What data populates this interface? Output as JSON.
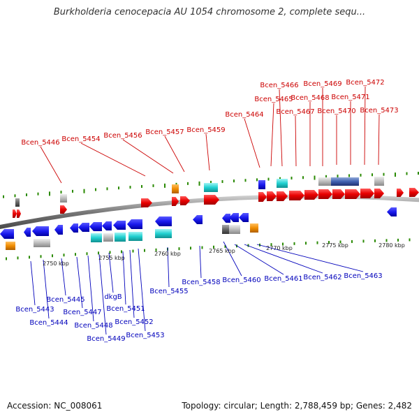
{
  "title": "Burkholderia cenocepacia AU 1054 chromosome 2, complete sequ...",
  "footer": {
    "accession": "Accession: NC_008061",
    "summary": "Topology: circular; Length: 2,788,459 bp; Genes: 2,482"
  },
  "colors": {
    "forward_gene": "#e80000",
    "reverse_gene": "#1a1aee",
    "rna": "#20d0d0",
    "pseudo": "#f08c00",
    "misc": "#bbbbbb",
    "gap": "#666666",
    "backbone": "#888888",
    "tick": "#2a8a00",
    "forward_label": "#cc0000",
    "reverse_label": "#0000bb"
  },
  "scale": {
    "unit": "kbp",
    "ticks": [
      {
        "label": "2750 kbp"
      },
      {
        "label": "2755 kbp"
      },
      {
        "label": "2760 kbp"
      },
      {
        "label": "2765 kbp"
      },
      {
        "label": "2770 kbp"
      },
      {
        "label": "2775 kbp"
      },
      {
        "label": "2780 kbp"
      }
    ]
  },
  "forward_labels": [
    "Bcen_5446",
    "Bcen_5454",
    "Bcen_5456",
    "Bcen_5457",
    "Bcen_5459",
    "Bcen_5464",
    "Bcen_5465",
    "Bcen_5466",
    "Bcen_5467",
    "Bcen_5468",
    "Bcen_5469",
    "Bcen_5470",
    "Bcen_5471",
    "Bcen_5472",
    "Bcen_5473"
  ],
  "reverse_labels": [
    "Bcen_5443",
    "Bcen_5444",
    "Bcen_5445",
    "Bcen_5447",
    "Bcen_5448",
    "Bcen_5449",
    "dkgB",
    "Bcen_5451",
    "Bcen_5452",
    "Bcen_5453",
    "Bcen_5455",
    "Bcen_5458",
    "Bcen_5460",
    "Bcen_5461",
    "Bcen_5462",
    "Bcen_5463"
  ]
}
